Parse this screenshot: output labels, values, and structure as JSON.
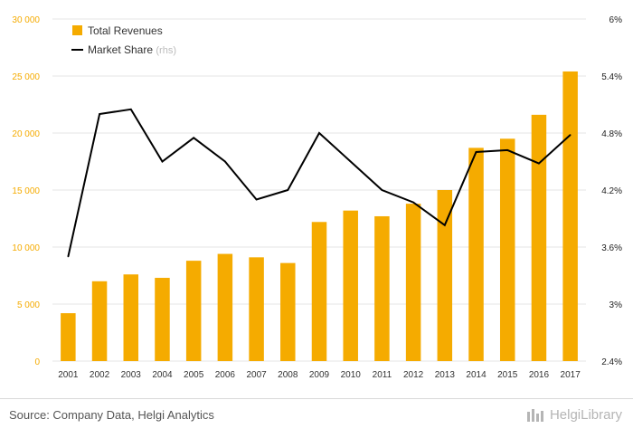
{
  "chart_data": {
    "type": "bar",
    "categories": [
      "2001",
      "2002",
      "2003",
      "2004",
      "2005",
      "2006",
      "2007",
      "2008",
      "2009",
      "2010",
      "2011",
      "2012",
      "2013",
      "2014",
      "2015",
      "2016",
      "2017"
    ],
    "series": [
      {
        "name": "Total Revenues",
        "type": "bar",
        "axis": "left",
        "color": "#f5ab00",
        "values": [
          4200,
          7000,
          7600,
          7300,
          8800,
          9400,
          9100,
          8600,
          12200,
          13200,
          12700,
          13800,
          15000,
          18700,
          19500,
          21600,
          25400
        ]
      },
      {
        "name": "Market Share",
        "name_suffix": "(rhs)",
        "type": "line",
        "axis": "right",
        "color": "#000000",
        "values": [
          3.5,
          5.0,
          5.05,
          4.5,
          4.75,
          4.5,
          4.1,
          4.2,
          4.8,
          4.5,
          4.2,
          4.07,
          3.83,
          4.6,
          4.62,
          4.48,
          4.78
        ]
      }
    ],
    "y_left": {
      "min": 0,
      "max": 30000,
      "ticks": [
        "0",
        "5 000",
        "10 000",
        "15 000",
        "20 000",
        "25 000",
        "30 000"
      ]
    },
    "y_right": {
      "min": 2.4,
      "max": 6.0,
      "ticks": [
        "2.4%",
        "3%",
        "3.6%",
        "4.2%",
        "4.8%",
        "5.4%",
        "6%"
      ]
    },
    "grid": true,
    "legend": "top-left"
  },
  "source_text": "Source: Company Data, Helgi Analytics",
  "logo_text": "HelgiLibrary",
  "colors": {
    "bar": "#f5ab00",
    "line": "#000000",
    "grid": "#e6e6e6",
    "left_tick": "#f5ab00"
  }
}
